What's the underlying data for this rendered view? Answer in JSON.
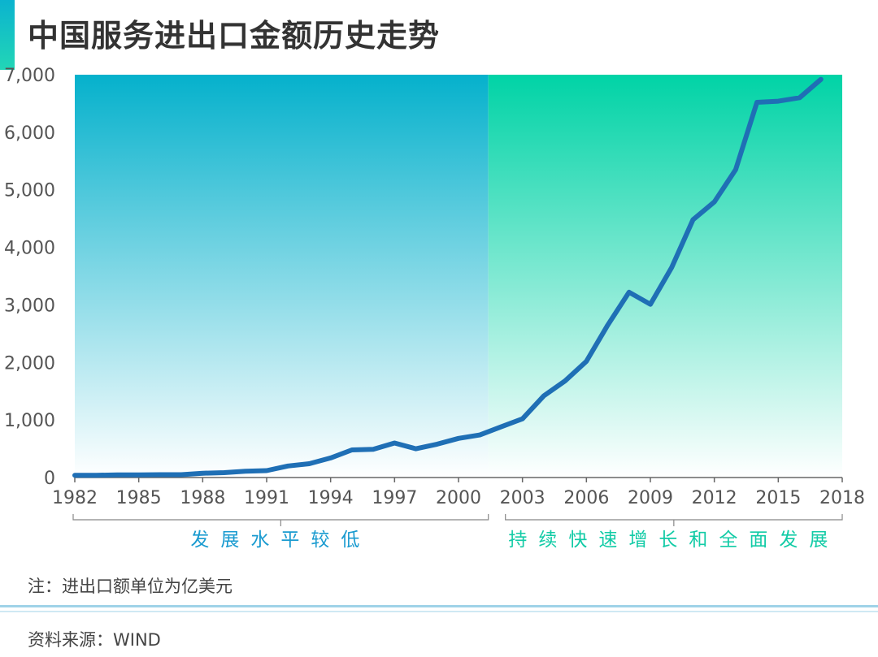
{
  "header": {
    "title": "中国服务进出口金额历史走势"
  },
  "note": "注：进出口额单位为亿美元",
  "source": "资料来源：WIND",
  "colors": {
    "line": "#1f6fb5",
    "period1_top": "#05b1cc",
    "period1_bottom": "#ffffff",
    "period2_top": "#00d3a6",
    "period2_bottom": "#ffffff",
    "period1_label": "#1a9bd0",
    "period2_label": "#12cba6",
    "axis_text": "#555555"
  },
  "chart_data": {
    "type": "line",
    "title": "中国服务进出口金额历史走势",
    "xlabel": "",
    "ylabel": "",
    "xlim": [
      1982,
      2018
    ],
    "ylim": [
      0,
      7000
    ],
    "grid": false,
    "x_ticks": [
      1982,
      1985,
      1988,
      1991,
      1994,
      1997,
      2000,
      2003,
      2006,
      2009,
      2012,
      2015,
      2018
    ],
    "x_tick_labels": [
      "1982",
      "1985",
      "1988",
      "1991",
      "1994",
      "1997",
      "2000",
      "2003",
      "2006",
      "2009",
      "2012",
      "2015",
      "2018"
    ],
    "y_ticks": [
      0,
      1000,
      2000,
      3000,
      4000,
      5000,
      6000,
      7000
    ],
    "y_tick_labels": [
      "0",
      "1,000",
      "2,000",
      "3,000",
      "4,000",
      "5,000",
      "6,000",
      "7,000"
    ],
    "periods": [
      {
        "label": "发展水平较低",
        "from": 1982,
        "to": 2001.4
      },
      {
        "label": "持续快速增长和全面发展",
        "from": 2001.4,
        "to": 2018
      }
    ],
    "series": [
      {
        "name": "中国服务进出口金额",
        "x": [
          1982,
          1983,
          1984,
          1985,
          1986,
          1987,
          1988,
          1989,
          1990,
          1991,
          1992,
          1993,
          1994,
          1995,
          1996,
          1997,
          1998,
          1999,
          2000,
          2001,
          2002,
          2003,
          2004,
          2005,
          2006,
          2007,
          2008,
          2009,
          2010,
          2011,
          2012,
          2013,
          2014,
          2015,
          2016,
          2017
        ],
        "values": [
          40,
          40,
          45,
          45,
          50,
          50,
          75,
          85,
          110,
          120,
          200,
          240,
          340,
          480,
          490,
          600,
          500,
          580,
          680,
          740,
          880,
          1020,
          1420,
          1680,
          2020,
          2650,
          3220,
          3010,
          3650,
          4480,
          4790,
          5350,
          6520,
          6540,
          6600,
          6920
        ]
      }
    ]
  }
}
